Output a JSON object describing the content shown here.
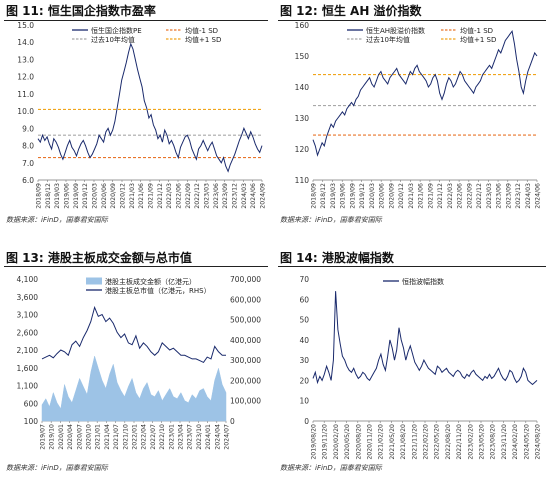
{
  "figures": [
    {
      "title": "图 11: 恒生国企指数市盈率",
      "source": "数据来源：iFinD，国泰君安国际",
      "chart_data": {
        "type": "line",
        "x_ticks": [
          "2018/09",
          "2018/12",
          "2019/03",
          "2019/06",
          "2019/09",
          "2019/12",
          "2020/03",
          "2020/06",
          "2020/09",
          "2020/12",
          "2021/03",
          "2021/06",
          "2021/09",
          "2021/12",
          "2022/03",
          "2022/06",
          "2022/09",
          "2022/12",
          "2023/03",
          "2023/06",
          "2023/09",
          "2023/12",
          "2024/03",
          "2024/06",
          "2024/09"
        ],
        "ylim": [
          6.0,
          15.0
        ],
        "y_ticks": [
          "6.0",
          "7.0",
          "8.0",
          "9.0",
          "10.0",
          "11.0",
          "12.0",
          "13.0",
          "14.0",
          "15.0"
        ],
        "series": [
          {
            "name": "恒生国企指数PE",
            "color": "#1a2a6c",
            "style": "solid",
            "values": [
              8.4,
              8.2,
              8.6,
              8.3,
              8.5,
              8.1,
              7.8,
              8.4,
              8.2,
              7.9,
              7.5,
              7.2,
              7.6,
              8.0,
              8.3,
              7.9,
              7.7,
              7.4,
              7.8,
              8.1,
              8.3,
              8.0,
              7.6,
              7.3,
              7.5,
              7.8,
              8.1,
              8.6,
              8.4,
              8.2,
              8.8,
              9.0,
              8.6,
              8.9,
              9.4,
              10.2,
              11.0,
              11.8,
              12.3,
              12.8,
              13.4,
              13.9,
              13.6,
              13.0,
              12.4,
              11.9,
              11.4,
              10.6,
              10.2,
              9.6,
              9.8,
              9.2,
              8.9,
              8.4,
              8.6,
              8.2,
              8.9,
              8.6,
              8.1,
              8.3,
              8.0,
              7.6,
              7.3,
              7.9,
              8.2,
              8.5,
              8.6,
              8.3,
              7.8,
              7.5,
              7.2,
              7.8,
              8.0,
              8.3,
              8.0,
              7.7,
              8.0,
              8.2,
              7.8,
              7.4,
              7.2,
              7.0,
              7.3,
              6.8,
              6.5,
              6.9,
              7.2,
              7.5,
              7.9,
              8.3,
              8.6,
              9.0,
              8.7,
              8.4,
              8.8,
              8.5,
              8.1,
              7.8,
              7.6,
              8.0
            ]
          },
          {
            "name": "均值-1 SD",
            "color": "#e8742a",
            "style": "dashed",
            "values": [
              7.3
            ]
          },
          {
            "name": "过去10年均值",
            "color": "#a8a8a8",
            "style": "dashed",
            "values": [
              8.6
            ]
          },
          {
            "name": "均值+1 SD",
            "color": "#f0a51c",
            "style": "dashed",
            "values": [
              10.1
            ]
          }
        ]
      }
    },
    {
      "title": "图 12: 恒生 AH 溢价指数",
      "source": "数据来源：iFinD，国泰君安国际",
      "chart_data": {
        "type": "line",
        "x_ticks": [
          "2018/09",
          "2018/12",
          "2019/03",
          "2019/06",
          "2019/09",
          "2019/12",
          "2020/03",
          "2020/06",
          "2020/09",
          "2020/12",
          "2021/03",
          "2021/06",
          "2021/09",
          "2021/12",
          "2022/03",
          "2022/06",
          "2022/09",
          "2022/12",
          "2023/03",
          "2023/06",
          "2023/09",
          "2023/12",
          "2024/03",
          "2024/06"
        ],
        "ylim": [
          110,
          160
        ],
        "y_ticks": [
          "110",
          "120",
          "130",
          "140",
          "150",
          "160"
        ],
        "series": [
          {
            "name": "恒生AH股溢价指数",
            "color": "#1a2a6c",
            "style": "solid",
            "values": [
              123,
              121,
              118,
              120,
              122,
              121,
              124,
              126,
              128,
              127,
              129,
              130,
              131,
              132,
              131,
              133,
              134,
              135,
              134,
              136,
              137,
              139,
              140,
              141,
              142,
              143,
              141,
              140,
              142,
              144,
              145,
              143,
              142,
              141,
              143,
              144,
              145,
              146,
              144,
              143,
              142,
              141,
              143,
              145,
              144,
              146,
              147,
              145,
              144,
              143,
              142,
              140,
              141,
              143,
              144,
              142,
              138,
              136,
              138,
              141,
              143,
              142,
              140,
              141,
              143,
              145,
              144,
              142,
              141,
              140,
              139,
              138,
              140,
              141,
              142,
              144,
              145,
              146,
              147,
              146,
              148,
              150,
              152,
              151,
              153,
              155,
              156,
              157,
              158,
              154,
              149,
              145,
              140,
              138,
              142,
              145,
              147,
              149,
              151,
              150
            ]
          },
          {
            "name": "均值-1 SD",
            "color": "#e8742a",
            "style": "dashed",
            "values": [
              124.5
            ]
          },
          {
            "name": "过去10年均值",
            "color": "#a8a8a8",
            "style": "dashed",
            "values": [
              134
            ]
          },
          {
            "name": "均值+1 SD",
            "color": "#f0a51c",
            "style": "dashed",
            "values": [
              144
            ]
          }
        ]
      }
    },
    {
      "title": "图 13: 港股主板成交金额与总市值",
      "source": "数据来源：iFinD，国泰君安国际",
      "chart_data": {
        "type": "area",
        "x_ticks": [
          "2019/07",
          "2019/10",
          "2020/01",
          "2020/04",
          "2020/07",
          "2020/10",
          "2021/01",
          "2021/04",
          "2021/07",
          "2021/10",
          "2022/01",
          "2022/04",
          "2022/07",
          "2022/10",
          "2023/01",
          "2023/04",
          "2023/07",
          "2023/10",
          "2024/01",
          "2024/04",
          "2024/07"
        ],
        "ylim_left": [
          100,
          4100
        ],
        "y_ticks_left": [
          "100",
          "600",
          "1,100",
          "1,600",
          "2,100",
          "2,600",
          "3,100",
          "3,600",
          "4,100"
        ],
        "ylim_right": [
          0,
          700000
        ],
        "y_ticks_right": [
          "0",
          "100,000",
          "200,000",
          "300,000",
          "400,000",
          "500,000",
          "600,000",
          "700,000"
        ],
        "series": [
          {
            "name": "港股主板成交金额（亿港元）",
            "axis": "right",
            "color": "#9dc3e6",
            "values": [
              80000,
              110000,
              70000,
              140000,
              90000,
              60000,
              180000,
              120000,
              90000,
              150000,
              210000,
              170000,
              130000,
              240000,
              320000,
              260000,
              200000,
              160000,
              230000,
              280000,
              190000,
              150000,
              120000,
              170000,
              210000,
              140000,
              110000,
              160000,
              190000,
              130000,
              120000,
              150000,
              100000,
              130000,
              160000,
              120000,
              110000,
              140000,
              100000,
              90000,
              130000,
              110000,
              150000,
              160000,
              120000,
              100000,
              200000,
              260000,
              180000,
              140000
            ]
          },
          {
            "name": "港股主板总市值（亿港元，RHS）",
            "axis": "left",
            "color": "#1a2a6c",
            "values": [
              1850,
              1900,
              1950,
              1880,
              2000,
              2100,
              2050,
              1950,
              2250,
              2350,
              2200,
              2450,
              2650,
              2900,
              3300,
              3050,
              3100,
              2900,
              3000,
              2850,
              2600,
              2450,
              2550,
              2300,
              2250,
              2500,
              2150,
              2300,
              2200,
              2050,
              1950,
              2050,
              2300,
              2200,
              2100,
              2150,
              2050,
              1950,
              1950,
              1900,
              1850,
              1850,
              1800,
              1750,
              1900,
              1850,
              2200,
              2050,
              1950,
              1950
            ]
          }
        ]
      }
    },
    {
      "title": "图 14: 港股波幅指数",
      "source": "数据来源：iFinD，国泰君安国际",
      "chart_data": {
        "type": "line",
        "x_ticks": [
          "2019/08/20",
          "2019/11/20",
          "2020/02/20",
          "2020/05/20",
          "2020/08/20",
          "2020/11/20",
          "2021/02/20",
          "2021/05/20",
          "2021/08/20",
          "2021/11/20",
          "2022/02/20",
          "2022/05/20",
          "2022/08/20",
          "2022/11/20",
          "2023/02/20",
          "2023/05/20",
          "2023/08/20",
          "2023/11/20",
          "2024/02/20",
          "2024/05/20",
          "2024/08/20"
        ],
        "ylim": [
          0,
          70
        ],
        "y_ticks": [
          "0",
          "10",
          "20",
          "30",
          "40",
          "50",
          "60",
          "70"
        ],
        "series": [
          {
            "name": "恒指波幅指数",
            "color": "#1a2a6c",
            "style": "solid",
            "values": [
              21,
              24,
              19,
              22,
              20,
              23,
              27,
              24,
              20,
              30,
              64,
              45,
              38,
              32,
              30,
              27,
              25,
              24,
              26,
              23,
              21,
              22,
              24,
              23,
              21,
              20,
              22,
              24,
              26,
              30,
              33,
              28,
              25,
              32,
              40,
              36,
              30,
              35,
              46,
              40,
              36,
              30,
              34,
              37,
              33,
              29,
              27,
              25,
              27,
              30,
              28,
              26,
              25,
              24,
              23,
              27,
              26,
              24,
              25,
              26,
              24,
              23,
              22,
              24,
              25,
              24,
              22,
              21,
              23,
              22,
              24,
              25,
              23,
              22,
              21,
              20,
              22,
              21,
              23,
              21,
              22,
              24,
              26,
              23,
              21,
              20,
              22,
              25,
              24,
              21,
              19,
              20,
              22,
              26,
              24,
              20,
              19,
              18,
              19,
              20
            ]
          }
        ]
      }
    }
  ]
}
